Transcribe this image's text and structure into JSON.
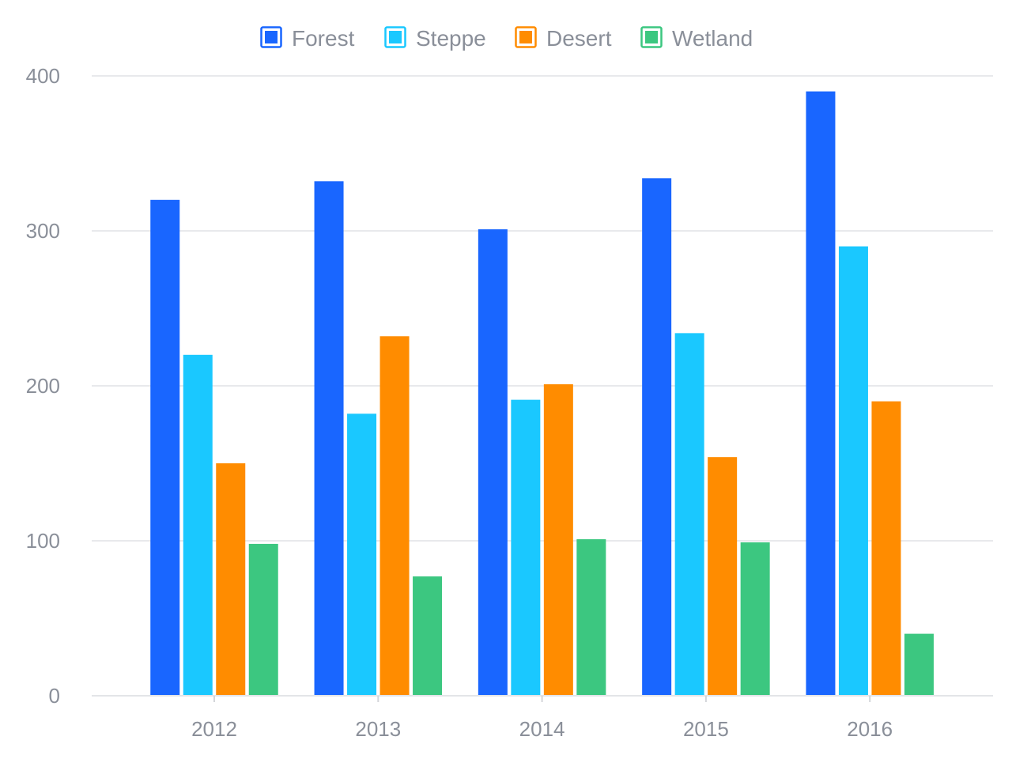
{
  "chart_data": {
    "type": "bar",
    "title": "",
    "xlabel": "",
    "ylabel": "",
    "categories": [
      "2012",
      "2013",
      "2014",
      "2015",
      "2016"
    ],
    "ylim": [
      0,
      400
    ],
    "yticks": [
      0,
      100,
      200,
      300,
      400
    ],
    "grid": true,
    "legend_position": "top-center",
    "series": [
      {
        "name": "Forest",
        "color": "#1966ff",
        "values": [
          320,
          332,
          301,
          334,
          390
        ]
      },
      {
        "name": "Steppe",
        "color": "#1ac8ff",
        "values": [
          220,
          182,
          191,
          234,
          290
        ]
      },
      {
        "name": "Desert",
        "color": "#ff8c00",
        "values": [
          150,
          232,
          201,
          154,
          190
        ]
      },
      {
        "name": "Wetland",
        "color": "#3cc780",
        "values": [
          98,
          77,
          101,
          99,
          40
        ]
      }
    ]
  }
}
